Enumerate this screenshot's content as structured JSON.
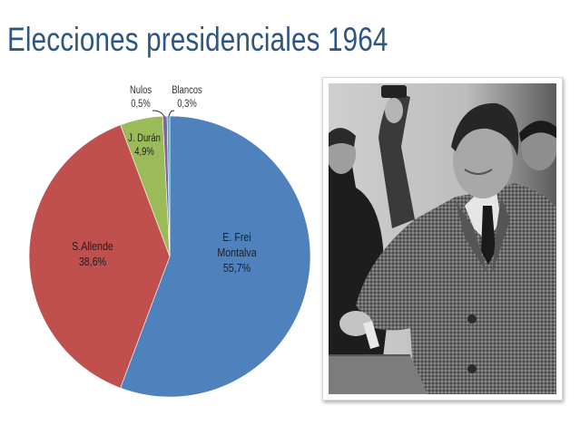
{
  "slide": {
    "title": "Elecciones presidenciales 1964",
    "title_color": "#2f5583"
  },
  "chart_data": {
    "type": "pie",
    "title": "Elecciones presidenciales 1964",
    "start_angle_deg": 0,
    "direction": "clockwise",
    "slices": [
      {
        "name": "E. Frei Montalva",
        "label_lines": [
          "E. Frei",
          "Montalva"
        ],
        "value": 55.7,
        "display": "55,7%",
        "color": "#4f81bd"
      },
      {
        "name": "S. Allende",
        "label_lines": [
          "S.Allende"
        ],
        "value": 38.6,
        "display": "38,6%",
        "color": "#c0504d"
      },
      {
        "name": "J. Durán",
        "label_lines": [
          "J. Durán"
        ],
        "value": 4.9,
        "display": "4,9%",
        "color": "#9bbb59"
      },
      {
        "name": "Nulos",
        "label_lines": [
          "Nulos"
        ],
        "value": 0.5,
        "display": "0,5%",
        "color": "#8064a2"
      },
      {
        "name": "Blancos",
        "label_lines": [
          "Blancos"
        ],
        "value": 0.3,
        "display": "0,3%",
        "color": "#4bacc6"
      }
    ],
    "legend": "none",
    "labels_position": "inside (small slices outside with leader lines)"
  },
  "photo": {
    "description": "Black and white photograph of a man in a tweed overcoat casting a ballot"
  }
}
